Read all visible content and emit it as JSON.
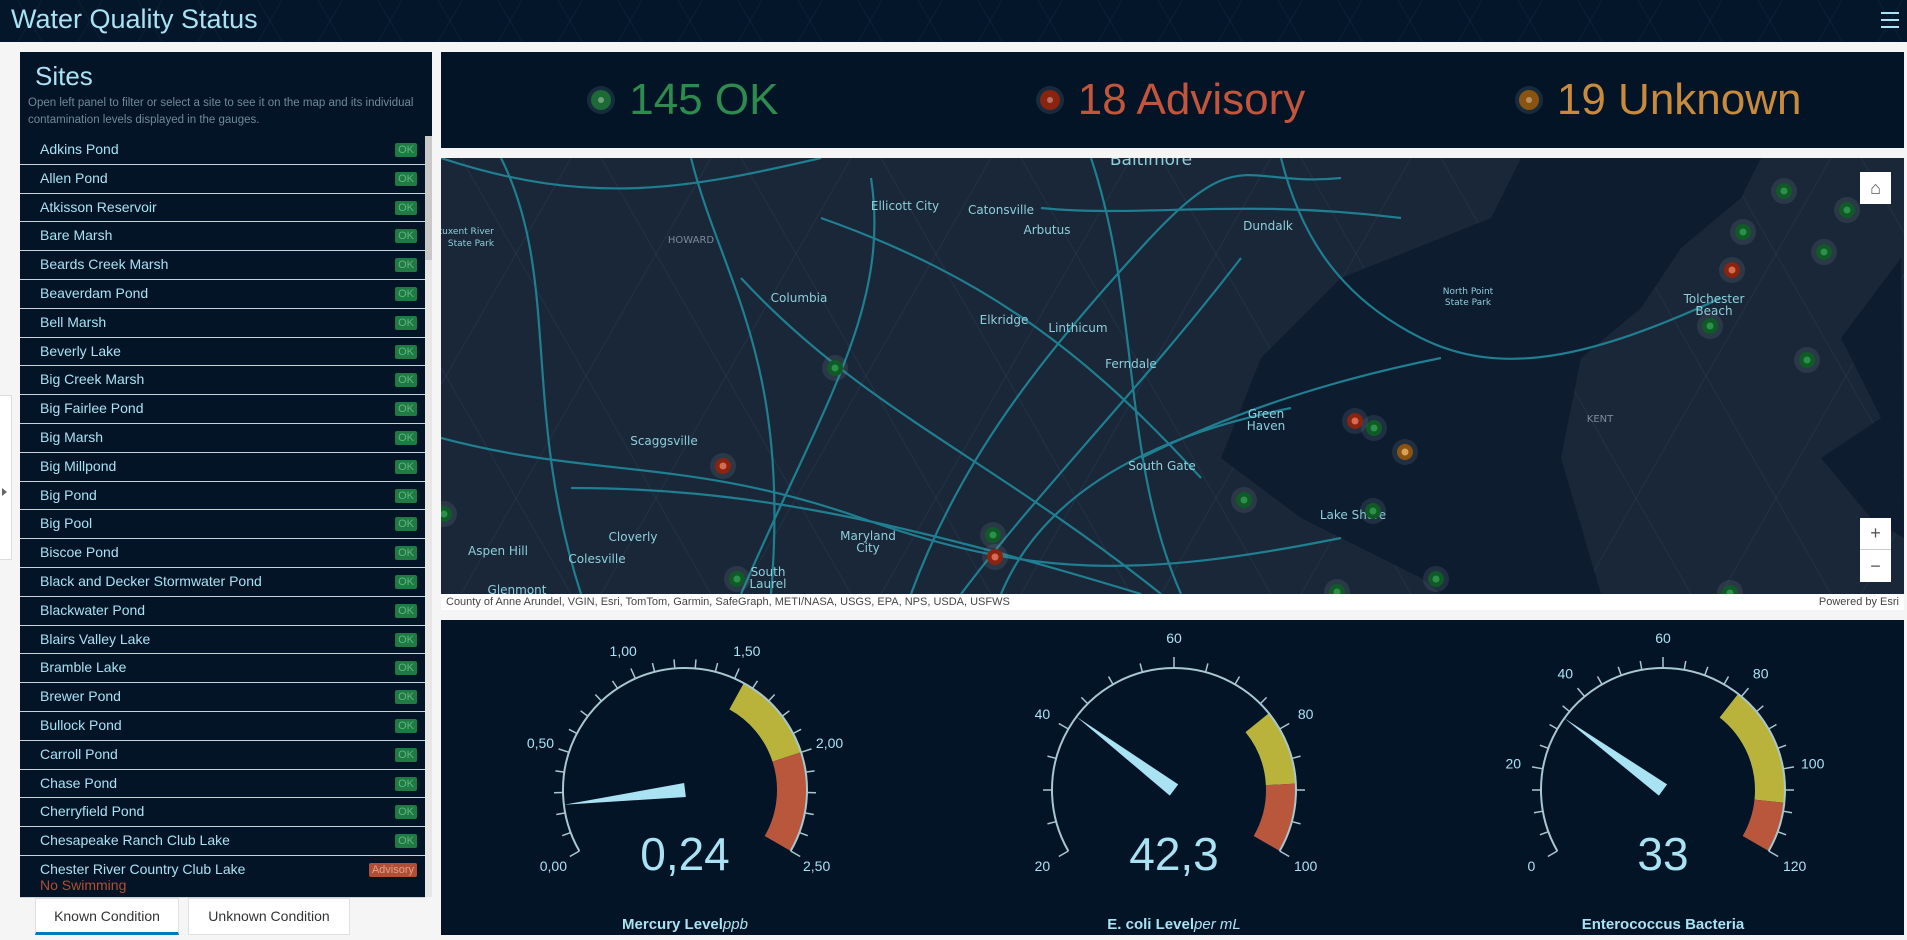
{
  "header": {
    "title": "Water Quality Status",
    "menu_icon": "hamburger-icon"
  },
  "sites": {
    "title": "Sites",
    "description": "Open left panel to filter or select a site to see it on the map and its individual contamination levels displayed in the gauges.",
    "items": [
      {
        "name": "Adkins Pond",
        "status": "OK"
      },
      {
        "name": "Allen Pond",
        "status": "OK"
      },
      {
        "name": "Atkisson Reservoir",
        "status": "OK"
      },
      {
        "name": "Bare Marsh",
        "status": "OK"
      },
      {
        "name": "Beards Creek Marsh",
        "status": "OK"
      },
      {
        "name": "Beaverdam Pond",
        "status": "OK"
      },
      {
        "name": "Bell Marsh",
        "status": "OK"
      },
      {
        "name": "Beverly Lake",
        "status": "OK"
      },
      {
        "name": "Big Creek Marsh",
        "status": "OK"
      },
      {
        "name": "Big Fairlee Pond",
        "status": "OK"
      },
      {
        "name": "Big Marsh",
        "status": "OK"
      },
      {
        "name": "Big Millpond",
        "status": "OK"
      },
      {
        "name": "Big Pond",
        "status": "OK"
      },
      {
        "name": "Big Pool",
        "status": "OK"
      },
      {
        "name": "Biscoe Pond",
        "status": "OK"
      },
      {
        "name": "Black and Decker Stormwater Pond",
        "status": "OK"
      },
      {
        "name": "Blackwater Pond",
        "status": "OK"
      },
      {
        "name": "Blairs Valley Lake",
        "status": "OK"
      },
      {
        "name": "Bramble Lake",
        "status": "OK"
      },
      {
        "name": "Brewer Pond",
        "status": "OK"
      },
      {
        "name": "Bullock Pond",
        "status": "OK"
      },
      {
        "name": "Carroll Pond",
        "status": "OK"
      },
      {
        "name": "Chase Pond",
        "status": "OK"
      },
      {
        "name": "Cherryfield Pond",
        "status": "OK"
      },
      {
        "name": "Chesapeake Ranch Club Lake",
        "status": "OK"
      },
      {
        "name": "Chester River Country Club Lake",
        "status": "Advisory",
        "note": "No Swimming"
      }
    ],
    "tabs": [
      "Known Condition",
      "Unknown Condition"
    ],
    "active_tab": "Known Condition"
  },
  "status": [
    {
      "label": "145 OK",
      "color": "#2e8b4e",
      "dot": "#1c6b34"
    },
    {
      "label": "18 Advisory",
      "color": "#c4553b",
      "dot": "#8a2410"
    },
    {
      "label": "19 Unknown",
      "color": "#c98a3c",
      "dot": "#8a5410"
    }
  ],
  "map": {
    "labels": [
      "Baltimore",
      "Ellicott City",
      "Catonsville",
      "Arbutus",
      "Dundalk",
      "HOWARD",
      "Patuxent River",
      "State Park",
      "Columbia",
      "Elkridge",
      "Linthicum",
      "Ferndale",
      "North Point",
      "State Park",
      "Tolchester",
      "Beach",
      "Green",
      "Haven",
      "South Gate",
      "Scaggsville",
      "KENT",
      "Lake Shore",
      "Aspen Hill",
      "Cloverly",
      "Colesville",
      "Maryland",
      "City",
      "South",
      "Laurel",
      "Glenmont"
    ],
    "markers": [
      "ok",
      "ok",
      "ok",
      "ok",
      "ok",
      "ok",
      "ok",
      "ok",
      "ok",
      "ok",
      "ok",
      "ok",
      "ok",
      "ok",
      "ok",
      "ok",
      "advisory",
      "advisory",
      "advisory",
      "advisory",
      "unknown"
    ],
    "attribution": "County of Anne Arundel, VGIN, Esri, TomTom, Garmin, SafeGraph, METI/NASA, USGS, EPA, NPS, USDA, USFWS",
    "powered_by": "Powered by Esri",
    "zoom_in": "+",
    "zoom_out": "−"
  },
  "gauges": [
    {
      "title": "Mercury Level",
      "unit": "ppb",
      "value": 0.24,
      "display": "0,24",
      "min": 0,
      "max": 2.5,
      "labels": [
        "0,00",
        "0,50",
        "1,00",
        "1,50",
        "2,00",
        "2,50"
      ],
      "minor": 5,
      "bands": [
        {
          "from": 1.55,
          "to": 2.0,
          "color": "#b9b33c"
        },
        {
          "from": 2.0,
          "to": 2.5,
          "color": "#b8573b"
        }
      ]
    },
    {
      "title": "E. coli Level",
      "unit": "per mL",
      "value": 42.3,
      "display": "42,3",
      "min": 20,
      "max": 100,
      "labels": [
        "20",
        "40",
        "60",
        "80",
        "100"
      ],
      "minor": 4,
      "bands": [
        {
          "from": 77,
          "to": 89,
          "color": "#b9b33c"
        },
        {
          "from": 89,
          "to": 100,
          "color": "#b8573b"
        }
      ]
    },
    {
      "title": "Enterococcus Bacteria",
      "unit": "",
      "value": 33,
      "display": "33",
      "min": 0,
      "max": 120,
      "labels": [
        "0",
        "20",
        "40",
        "60",
        "80",
        "100",
        "120"
      ],
      "minor": 4,
      "bands": [
        {
          "from": 79,
          "to": 108,
          "color": "#b9b33c"
        },
        {
          "from": 108,
          "to": 120,
          "color": "#b8573b"
        }
      ]
    }
  ]
}
